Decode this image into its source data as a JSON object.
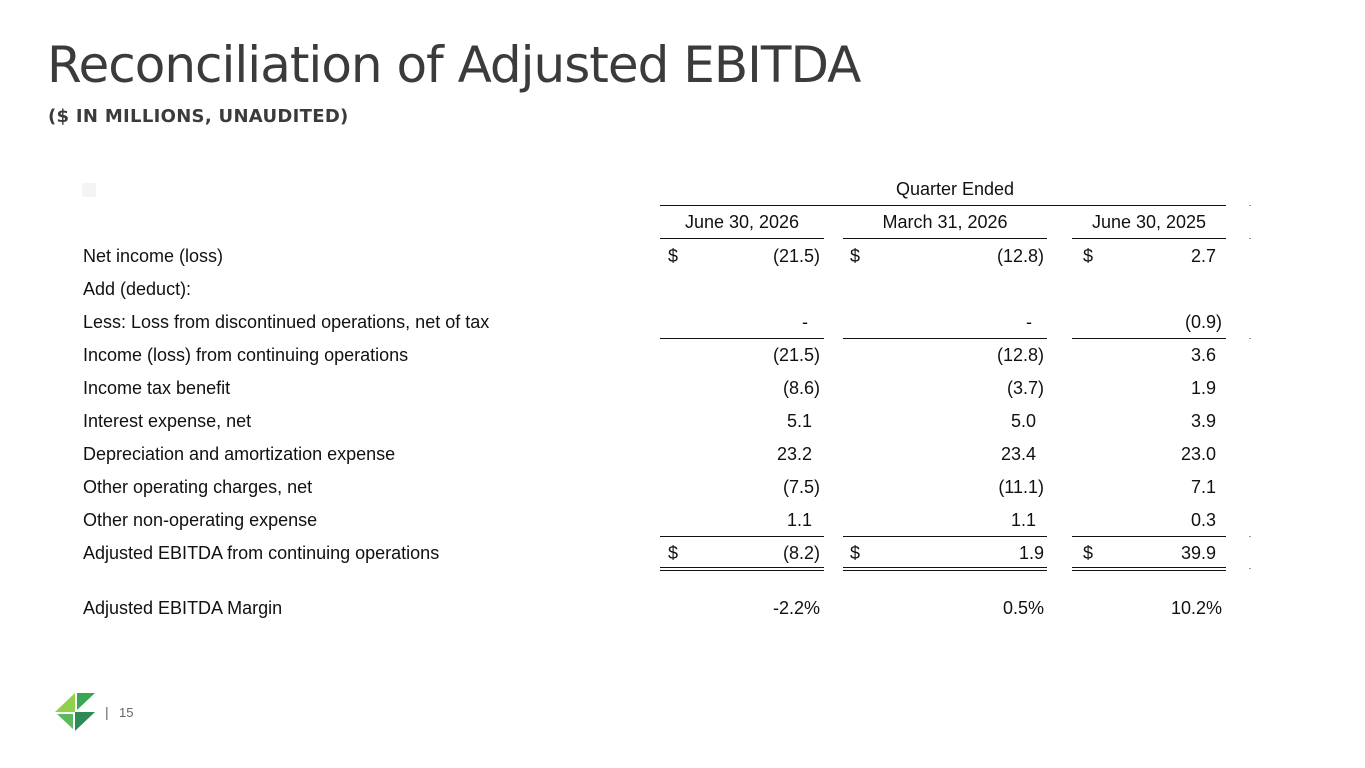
{
  "slide": {
    "title": "Reconciliation of Adjusted EBITDA",
    "subtitle": "($ IN MILLIONS, UNAUDITED)",
    "page_number": "15",
    "separator": "|"
  },
  "table": {
    "group_header": "Quarter Ended",
    "columns": [
      "June 30, 2026",
      "March 31, 2026",
      "June 30, 2025"
    ],
    "currency_symbol": "$",
    "rows": [
      {
        "label": "Net income (loss)",
        "values": [
          "(21.5)",
          "(12.8)",
          "2.7"
        ]
      },
      {
        "label": "Add (deduct):",
        "values": [
          "",
          "",
          ""
        ]
      },
      {
        "label": "Less: Loss  from discontinued operations, net of tax",
        "values": [
          "-",
          "-",
          "(0.9)"
        ]
      },
      {
        "label": "Income (loss) from continuing operations",
        "values": [
          "(21.5)",
          "(12.8)",
          "3.6"
        ]
      },
      {
        "label": "Income tax benefit",
        "values": [
          "(8.6)",
          "(3.7)",
          "1.9"
        ]
      },
      {
        "label": "Interest expense, net",
        "values": [
          "5.1",
          "5.0",
          "3.9"
        ]
      },
      {
        "label": "Depreciation and amortization expense",
        "values": [
          "23.2",
          "23.4",
          "23.0"
        ]
      },
      {
        "label": "Other operating charges, net",
        "values": [
          "(7.5)",
          "(11.1)",
          "7.1"
        ]
      },
      {
        "label": "Other non-operating expense",
        "values": [
          "1.1",
          "1.1",
          "0.3"
        ]
      },
      {
        "label": "Adjusted EBITDA from continuing operations",
        "values": [
          "(8.2)",
          "1.9",
          "39.9"
        ]
      }
    ],
    "margin_row": {
      "label": "Adjusted EBITDA Margin",
      "values": [
        "-2.2%",
        "0.5%",
        "10.2%"
      ]
    }
  },
  "colors": {
    "title": "#3b3b3b",
    "logo_green": "#5cb85c",
    "logo_dark_green": "#2e8b57"
  },
  "icons": {
    "logo": "company-logo-icon"
  }
}
